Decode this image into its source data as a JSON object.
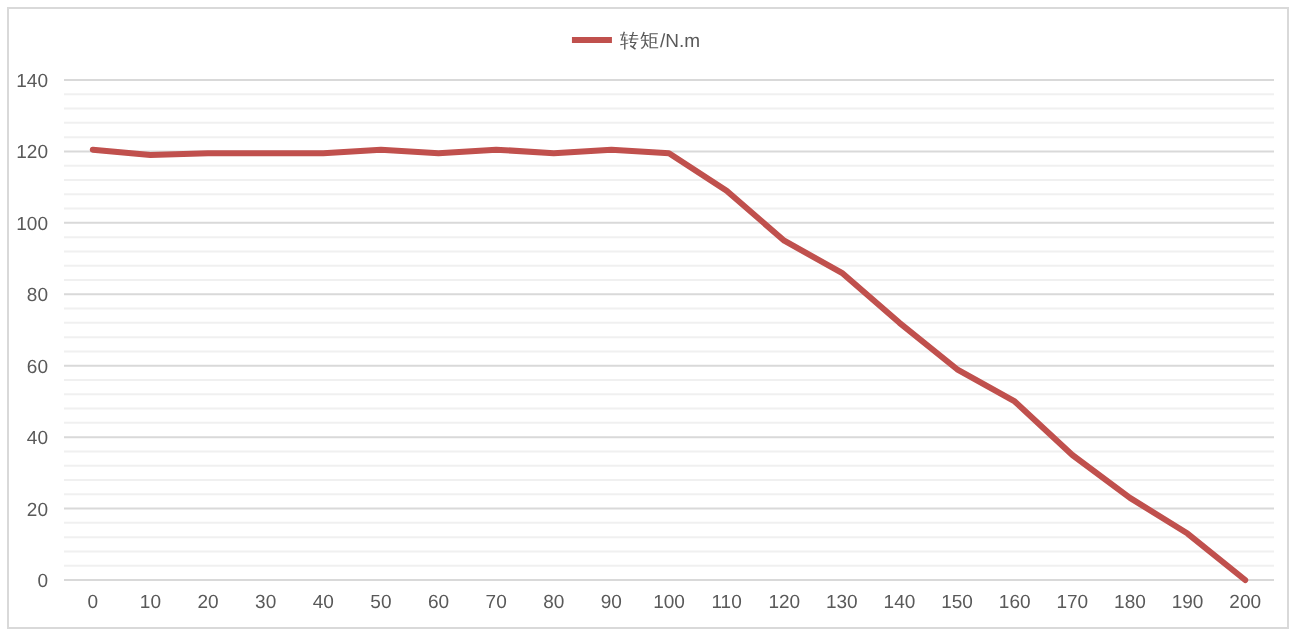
{
  "chart_data": {
    "type": "line",
    "categories": [
      "0",
      "10",
      "20",
      "30",
      "40",
      "50",
      "60",
      "70",
      "80",
      "90",
      "100",
      "110",
      "120",
      "130",
      "140",
      "150",
      "160",
      "170",
      "180",
      "190",
      "200"
    ],
    "series": [
      {
        "name": "转矩/N.m",
        "color": "#c0504d",
        "values": [
          120.5,
          119,
          119.5,
          119.5,
          119.5,
          120.5,
          119.5,
          120.5,
          119.5,
          120.5,
          119.5,
          109,
          95,
          86,
          72,
          59,
          50,
          35,
          23,
          13,
          0
        ]
      }
    ],
    "ylim": [
      0,
      140
    ],
    "yticks": [
      0,
      20,
      40,
      60,
      80,
      100,
      120,
      140
    ],
    "grid": "y",
    "legend": "top",
    "marker": "none",
    "line_style": "solid"
  }
}
